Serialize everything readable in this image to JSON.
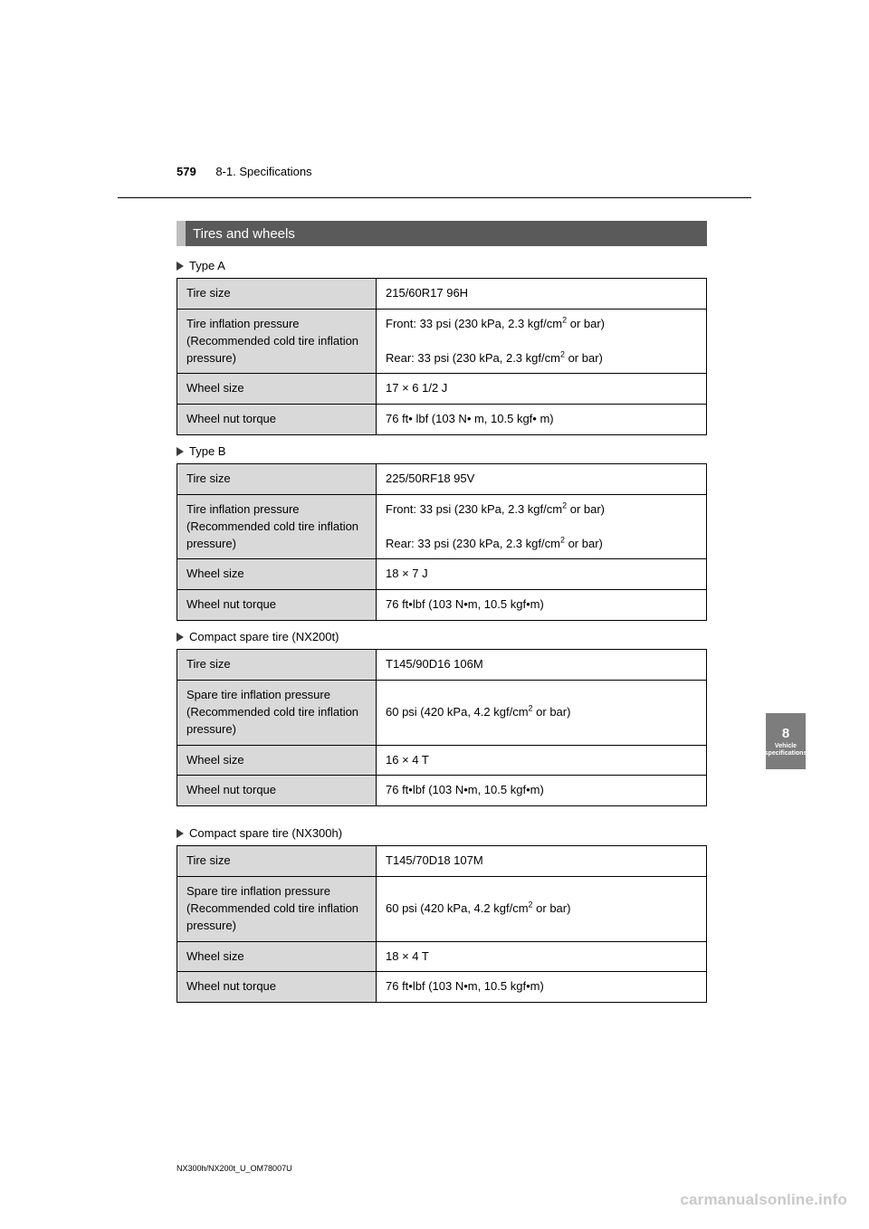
{
  "header": {
    "page_number": "579",
    "section": "8-1. Specifications"
  },
  "section_title": "Tires and wheels",
  "groups": [
    {
      "subheading": "Type A",
      "rows": [
        {
          "label": "Tire size",
          "value_html": "215/60R17 96H"
        },
        {
          "label": "Tire inflation pressure\n(Recommended cold tire inflation pressure)",
          "value_html": "Front: 33 psi (230 kPa, 2.3 kgf/cm<sup>2</sup> or bar)<br><br>Rear: 33 psi (230 kPa, 2.3 kgf/cm<sup>2</sup> or bar)"
        },
        {
          "label": "Wheel size",
          "value_html": "17 × 6 1/2 J"
        },
        {
          "label": "Wheel nut torque",
          "value_html": "76 ft• lbf (103 N• m, 10.5 kgf• m)"
        }
      ]
    },
    {
      "subheading": "Type B",
      "rows": [
        {
          "label": "Tire size",
          "value_html": "225/50RF18 95V"
        },
        {
          "label": "Tire inflation pressure\n(Recommended cold tire inflation pressure)",
          "value_html": "Front: 33 psi (230 kPa, 2.3 kgf/cm<sup>2</sup> or bar)<br><br>Rear: 33 psi (230 kPa, 2.3 kgf/cm<sup>2</sup> or bar)"
        },
        {
          "label": "Wheel size",
          "value_html": "18 × 7 J"
        },
        {
          "label": "Wheel nut torque",
          "value_html": "76 ft•lbf (103 N•m, 10.5 kgf•m)"
        }
      ]
    },
    {
      "subheading": "Compact spare tire (NX200t)",
      "rows": [
        {
          "label": "Tire size",
          "value_html": "T145/90D16 106M"
        },
        {
          "label": "Spare tire inflation pressure\n(Recommended cold tire inflation pressure)",
          "value_html": "60 psi (420 kPa, 4.2 kgf/cm<sup>2</sup> or bar)"
        },
        {
          "label": "Wheel size",
          "value_html": "16 × 4 T"
        },
        {
          "label": "Wheel nut torque",
          "value_html": "76 ft•lbf (103 N•m, 10.5 kgf•m)"
        }
      ]
    },
    {
      "subheading": "Compact spare tire (NX300h)",
      "rows": [
        {
          "label": "Tire size",
          "value_html": "T145/70D18 107M"
        },
        {
          "label": "Spare tire inflation pressure\n(Recommended cold tire inflation pressure)",
          "value_html": "60 psi (420 kPa, 4.2 kgf/cm<sup>2</sup> or bar)"
        },
        {
          "label": "Wheel size",
          "value_html": "18 × 4 T"
        },
        {
          "label": "Wheel nut torque",
          "value_html": "76 ft•lbf (103 N•m, 10.5 kgf•m)"
        }
      ]
    }
  ],
  "side_tab": {
    "number": "8",
    "label": "Vehicle specifications"
  },
  "footer": "NX300h/NX200t_U_OM78007U",
  "watermark": "carmanualsonline.info"
}
